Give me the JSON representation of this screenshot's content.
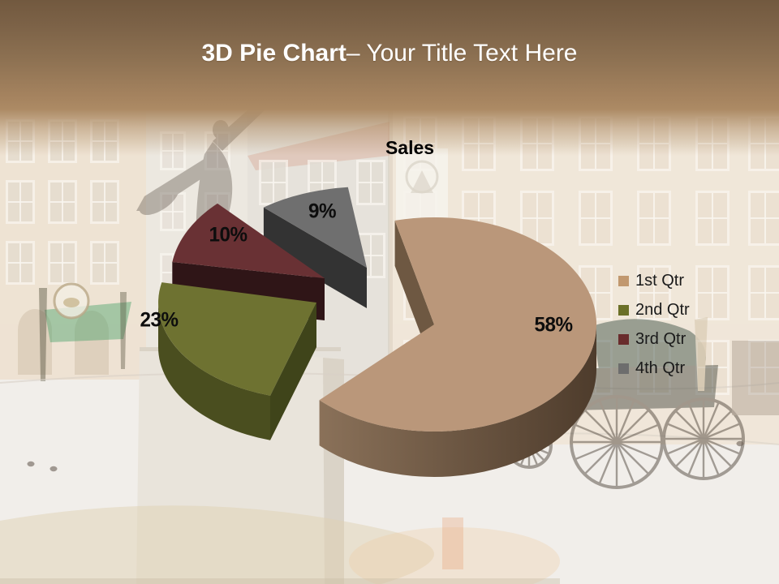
{
  "slide": {
    "title_bold": "3D Pie Chart",
    "title_rest": "– Your Title Text Here"
  },
  "chart_data": {
    "type": "pie",
    "title": "Sales",
    "style": "3d-exploded",
    "legend_position": "right",
    "slices": [
      {
        "label": "1st Qtr",
        "value": 58,
        "pct_label": "58%",
        "top": "#BA977A",
        "side": "#8A7159",
        "side_dark": "#4E3C2C",
        "wall": "#6E5842",
        "swatch": "#C1986F"
      },
      {
        "label": "2nd Qtr",
        "value": 23,
        "pct_label": "23%",
        "top": "#6E7231",
        "side": "#4A4E1F",
        "side_dark": "#3F441A",
        "wall": "#3F441A",
        "swatch": "#6B7028"
      },
      {
        "label": "3rd Qtr",
        "value": 10,
        "pct_label": "10%",
        "top": "#693134",
        "side": "#3B191D",
        "side_dark": "#2F1517",
        "wall": "#2F1517",
        "swatch": "#692C2C"
      },
      {
        "label": "4th Qtr",
        "value": 9,
        "pct_label": "9%",
        "top": "#6F6F6F",
        "side": "#3A3A3A",
        "side_dark": "#303030",
        "wall": "#333333",
        "swatch": "#6D6D6D"
      }
    ],
    "background": {
      "header_gradient_top": "#72593F",
      "header_gradient_bottom": "#A5835F",
      "photo_wash": "#FFFFFF",
      "facade_left": "#E2C49E",
      "facade_mid": "#CBC2B4",
      "facade_right": "#E7CFAF",
      "roof": "#C4765A",
      "awning_green": "#3F9E63",
      "statue": "#6B6158",
      "pedestal": "#E9E4DB",
      "fountain": "#E0D2B4",
      "carriage": "#544A40",
      "title_text": "#FFFFFF",
      "label_text": "#0D0D0D"
    }
  }
}
